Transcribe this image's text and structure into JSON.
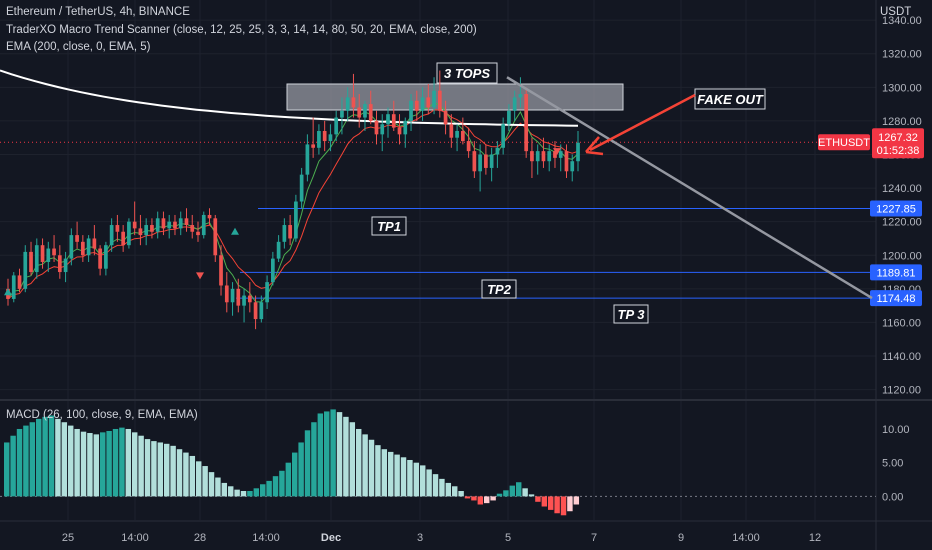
{
  "header": {
    "line1": "Ethereum / TetherUS, 4h, BINANCE",
    "line2": "TraderXO Macro Trend Scanner (close, 12, 25, 25, 3, 3, 14, 14, 80, 50, 20, EMA, close, 200)",
    "line3": "EMA (200, close, 0, EMA, 5)",
    "currency": "USDT"
  },
  "chart_data": {
    "type": "candlestick",
    "symbol": "ETHUSDT",
    "price_axis": {
      "ticks": [
        "1340.00",
        "1320.00",
        "1300.00",
        "1280.00",
        "1260.00",
        "1240.00",
        "1220.00",
        "1200.00",
        "1180.00",
        "1160.00",
        "1140.00",
        "1120.00"
      ],
      "ylim": [
        1115,
        1352
      ]
    },
    "time_axis": {
      "ticks": [
        "25",
        "14:00",
        "28",
        "14:00",
        "Dec",
        "3",
        "5",
        "7",
        "9",
        "14:00",
        "12"
      ]
    },
    "current_price": {
      "label": "ETHUSDT",
      "value": "1267.32",
      "countdown": "01:52:38",
      "color": "#f23645"
    },
    "levels": [
      {
        "name": "TP1",
        "value": 1227.85,
        "label": "1227.85"
      },
      {
        "name": "TP2",
        "value": 1189.81,
        "label": "1189.81"
      },
      {
        "name": "TP 3",
        "value": 1174.48,
        "label": "1174.48"
      }
    ],
    "annotations": {
      "tops": "3 TOPS",
      "fakeout": "FAKE OUT",
      "tp1": "TP1",
      "tp2": "TP2",
      "tp3": "TP 3"
    },
    "candles_ohlc": [
      [
        1180,
        1186,
        1170,
        1174
      ],
      [
        1174,
        1190,
        1172,
        1188
      ],
      [
        1188,
        1192,
        1178,
        1180
      ],
      [
        1180,
        1206,
        1178,
        1202
      ],
      [
        1202,
        1208,
        1188,
        1190
      ],
      [
        1190,
        1210,
        1186,
        1206
      ],
      [
        1206,
        1210,
        1192,
        1196
      ],
      [
        1196,
        1208,
        1190,
        1204
      ],
      [
        1204,
        1212,
        1196,
        1200
      ],
      [
        1200,
        1206,
        1186,
        1190
      ],
      [
        1190,
        1202,
        1184,
        1198
      ],
      [
        1198,
        1216,
        1194,
        1212
      ],
      [
        1212,
        1220,
        1204,
        1208
      ],
      [
        1208,
        1212,
        1196,
        1200
      ],
      [
        1200,
        1212,
        1196,
        1210
      ],
      [
        1210,
        1218,
        1200,
        1204
      ],
      [
        1204,
        1206,
        1188,
        1192
      ],
      [
        1192,
        1208,
        1188,
        1206
      ],
      [
        1206,
        1222,
        1202,
        1218
      ],
      [
        1218,
        1224,
        1208,
        1214
      ],
      [
        1214,
        1218,
        1202,
        1206
      ],
      [
        1206,
        1222,
        1204,
        1220
      ],
      [
        1220,
        1232,
        1212,
        1216
      ],
      [
        1216,
        1224,
        1206,
        1212
      ],
      [
        1212,
        1222,
        1206,
        1218
      ],
      [
        1218,
        1222,
        1210,
        1214
      ],
      [
        1214,
        1226,
        1210,
        1222
      ],
      [
        1222,
        1226,
        1212,
        1216
      ],
      [
        1216,
        1224,
        1210,
        1220
      ],
      [
        1220,
        1224,
        1212,
        1216
      ],
      [
        1216,
        1226,
        1212,
        1222
      ],
      [
        1222,
        1228,
        1214,
        1218
      ],
      [
        1218,
        1224,
        1210,
        1214
      ],
      [
        1214,
        1220,
        1208,
        1212
      ],
      [
        1212,
        1226,
        1210,
        1224
      ],
      [
        1224,
        1228,
        1218,
        1222
      ],
      [
        1222,
        1224,
        1196,
        1200
      ],
      [
        1200,
        1206,
        1176,
        1182
      ],
      [
        1182,
        1190,
        1166,
        1172
      ],
      [
        1172,
        1184,
        1164,
        1180
      ],
      [
        1180,
        1186,
        1166,
        1170
      ],
      [
        1170,
        1180,
        1160,
        1176
      ],
      [
        1176,
        1184,
        1166,
        1172
      ],
      [
        1172,
        1176,
        1156,
        1162
      ],
      [
        1162,
        1176,
        1160,
        1172
      ],
      [
        1172,
        1188,
        1168,
        1184
      ],
      [
        1184,
        1202,
        1182,
        1198
      ],
      [
        1198,
        1212,
        1196,
        1208
      ],
      [
        1208,
        1222,
        1204,
        1218
      ],
      [
        1218,
        1224,
        1206,
        1210
      ],
      [
        1210,
        1236,
        1208,
        1232
      ],
      [
        1232,
        1252,
        1228,
        1248
      ],
      [
        1248,
        1272,
        1244,
        1266
      ],
      [
        1266,
        1282,
        1258,
        1264
      ],
      [
        1264,
        1278,
        1260,
        1274
      ],
      [
        1274,
        1280,
        1262,
        1268
      ],
      [
        1268,
        1278,
        1262,
        1272
      ],
      [
        1272,
        1286,
        1268,
        1282
      ],
      [
        1282,
        1294,
        1272,
        1286
      ],
      [
        1286,
        1300,
        1280,
        1294
      ],
      [
        1294,
        1308,
        1282,
        1288
      ],
      [
        1288,
        1296,
        1276,
        1282
      ],
      [
        1282,
        1292,
        1274,
        1290
      ],
      [
        1290,
        1298,
        1278,
        1280
      ],
      [
        1280,
        1286,
        1266,
        1272
      ],
      [
        1272,
        1284,
        1262,
        1278
      ],
      [
        1278,
        1288,
        1270,
        1284
      ],
      [
        1284,
        1292,
        1274,
        1276
      ],
      [
        1276,
        1284,
        1266,
        1272
      ],
      [
        1272,
        1282,
        1264,
        1280
      ],
      [
        1280,
        1296,
        1274,
        1292
      ],
      [
        1292,
        1298,
        1280,
        1286
      ],
      [
        1286,
        1300,
        1280,
        1294
      ],
      [
        1294,
        1302,
        1284,
        1288
      ],
      [
        1288,
        1306,
        1284,
        1298
      ],
      [
        1298,
        1310,
        1282,
        1286
      ],
      [
        1286,
        1292,
        1272,
        1278
      ],
      [
        1278,
        1284,
        1264,
        1270
      ],
      [
        1270,
        1278,
        1262,
        1274
      ],
      [
        1274,
        1282,
        1266,
        1268
      ],
      [
        1268,
        1276,
        1258,
        1262
      ],
      [
        1262,
        1268,
        1246,
        1250
      ],
      [
        1250,
        1266,
        1238,
        1260
      ],
      [
        1260,
        1266,
        1248,
        1252
      ],
      [
        1252,
        1264,
        1244,
        1260
      ],
      [
        1260,
        1268,
        1252,
        1264
      ],
      [
        1264,
        1282,
        1260,
        1278
      ],
      [
        1278,
        1290,
        1274,
        1286
      ],
      [
        1286,
        1298,
        1280,
        1294
      ],
      [
        1294,
        1306,
        1288,
        1296
      ],
      [
        1296,
        1300,
        1258,
        1262
      ],
      [
        1262,
        1270,
        1246,
        1256
      ],
      [
        1256,
        1266,
        1248,
        1262
      ],
      [
        1262,
        1270,
        1252,
        1256
      ],
      [
        1256,
        1266,
        1250,
        1262
      ],
      [
        1262,
        1268,
        1252,
        1258
      ],
      [
        1258,
        1266,
        1250,
        1262
      ],
      [
        1262,
        1266,
        1246,
        1250
      ],
      [
        1250,
        1260,
        1244,
        1256
      ],
      [
        1256,
        1274,
        1250,
        1267
      ]
    ],
    "macd_histogram": {
      "ticks": [
        "10.00",
        "5.00",
        "0.00"
      ],
      "ylim": [
        -3.5,
        14
      ],
      "values": [
        8,
        9,
        10,
        10.5,
        11,
        11.5,
        11.8,
        12,
        11.5,
        11,
        10.5,
        10,
        9.6,
        9.4,
        9.2,
        9.5,
        9.7,
        10,
        10.2,
        10,
        9.5,
        9,
        8.5,
        8.2,
        8,
        7.8,
        7.5,
        7,
        6.5,
        6,
        5.2,
        4.5,
        3.6,
        2.8,
        2,
        1.5,
        1,
        0.8,
        0.8,
        1.2,
        1.8,
        2.3,
        3,
        3.8,
        5,
        6.5,
        8,
        9.8,
        11,
        12.3,
        12.6,
        12.9,
        12.5,
        11.8,
        11,
        10,
        9.2,
        8.4,
        7.6,
        7,
        6.6,
        6.2,
        5.8,
        5.4,
        5,
        4.6,
        4,
        3.3,
        2.6,
        2,
        1.5,
        0.8,
        -0.3,
        -0.6,
        -1.2,
        -1.0,
        -0.6,
        0.4,
        0.9,
        1.6,
        2.1,
        1.2,
        0.3,
        -0.8,
        -1.5,
        -2.0,
        -2.5,
        -2.8,
        -2.2,
        -1.2
      ],
      "colors": {
        "up_strong": "#26a69a",
        "up_weak": "#b2dfdb",
        "down_strong": "#ff5252",
        "down_weak": "#ffcdd2"
      }
    },
    "colors": {
      "bull": "#26a69a",
      "bear": "#ef5350",
      "ema200": "#ffffff",
      "fast_ma": "#4caf50",
      "slow_ma": "#f44336",
      "level": "#2962ff",
      "trend": "#9598a1",
      "arrow": "#f44336"
    }
  },
  "macd_label": "MACD (26, 100, close, 9, EMA, EMA)"
}
